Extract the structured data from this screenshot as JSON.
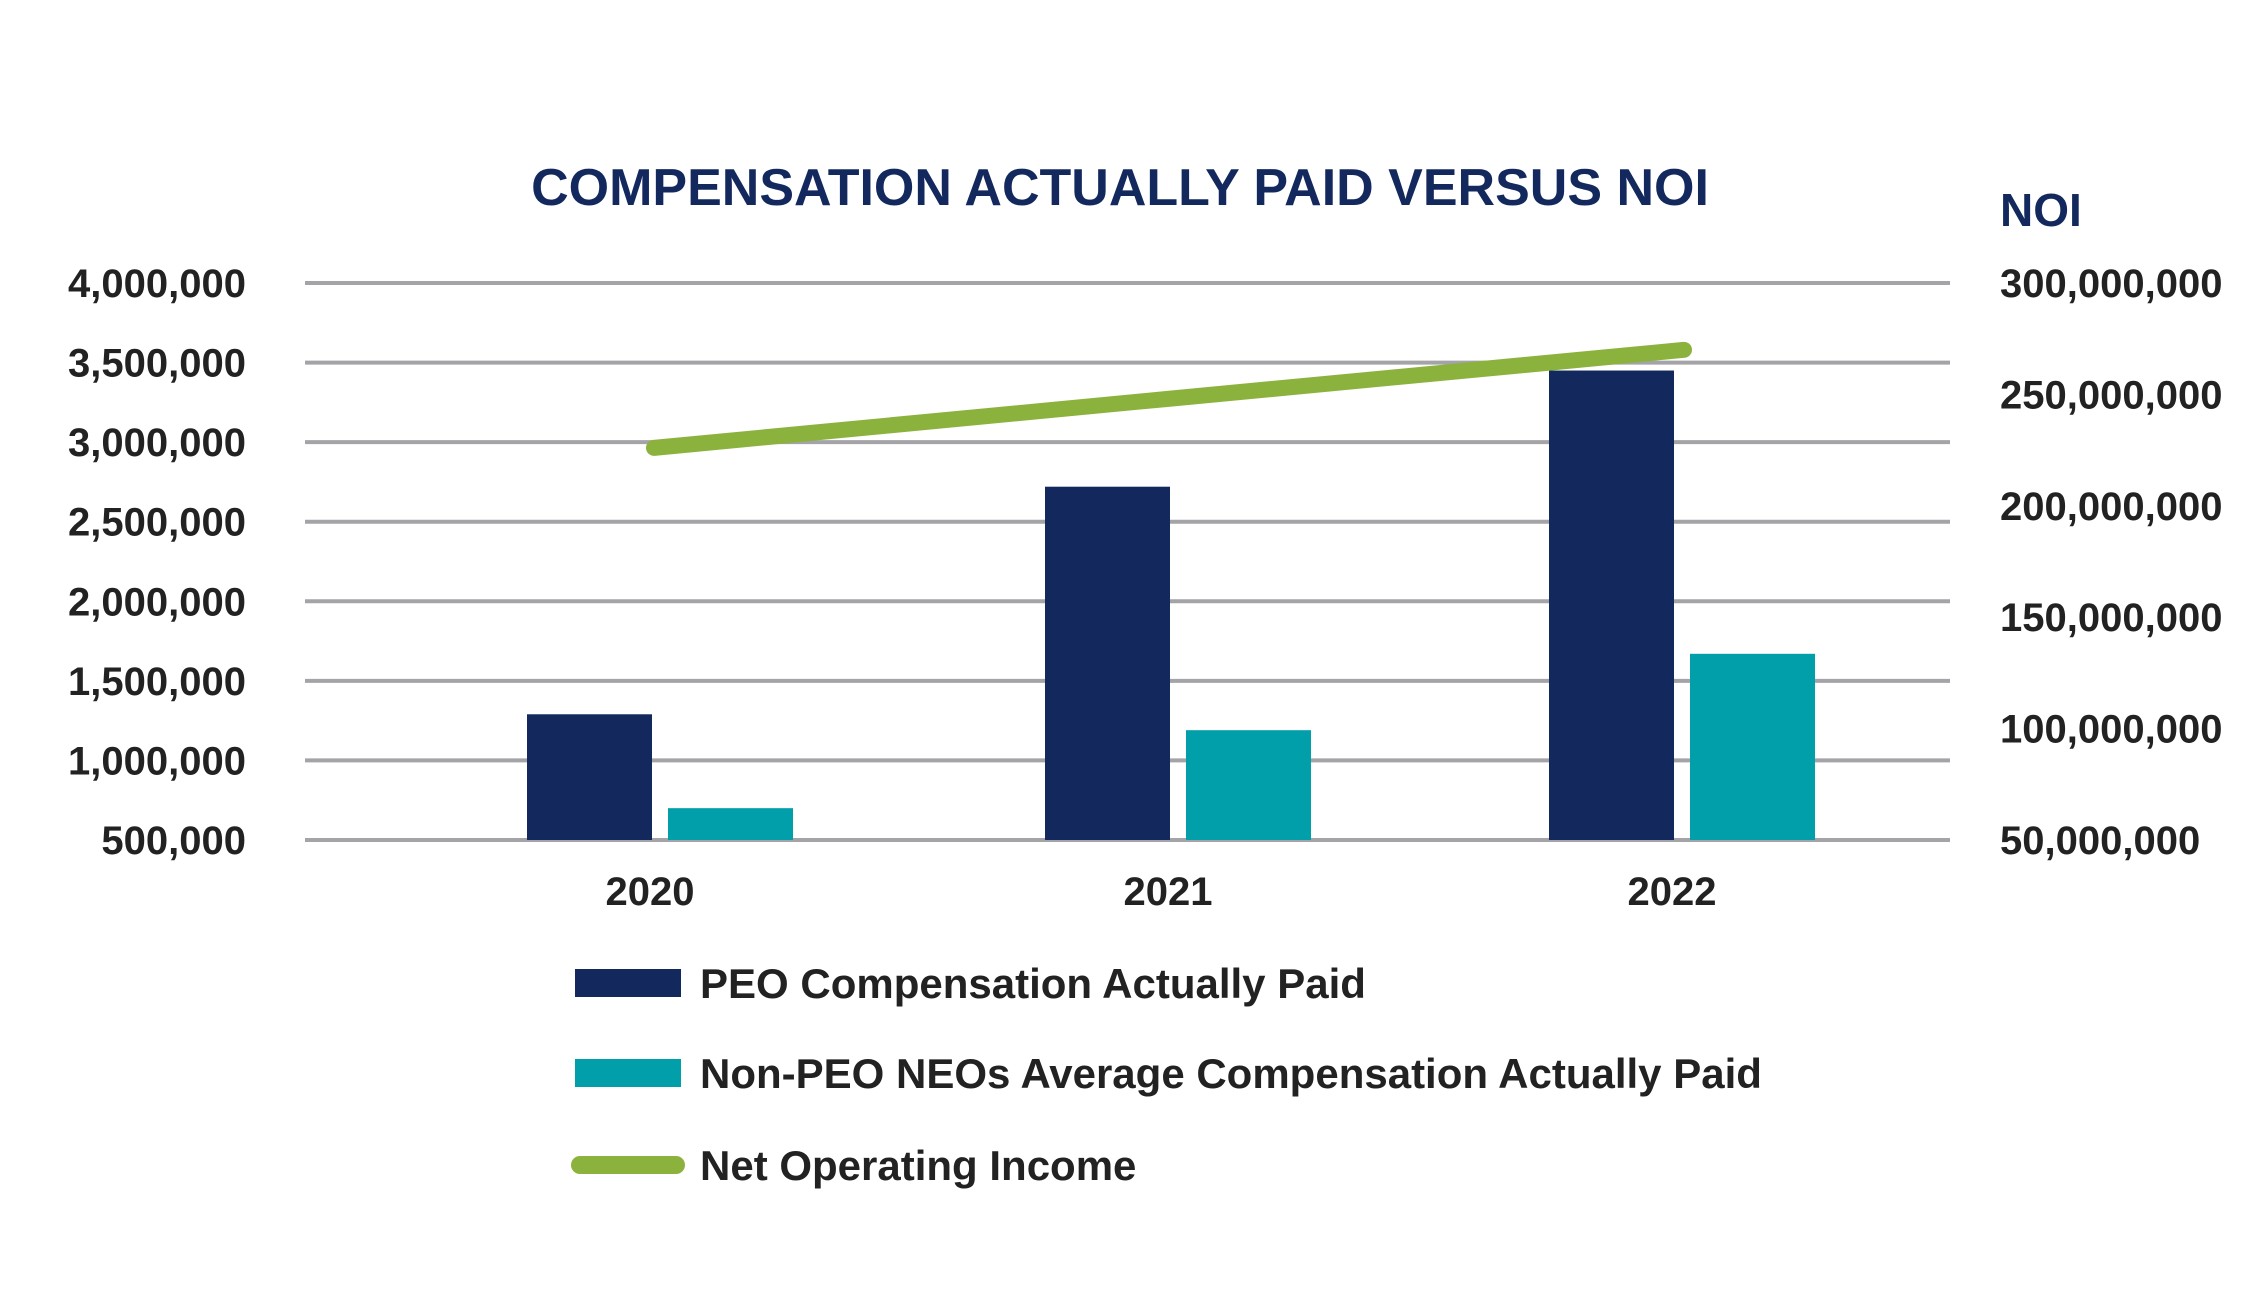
{
  "chart_data": {
    "type": "bar",
    "title": "COMPENSATION ACTUALLY PAID VERSUS NOI",
    "categories": [
      "2020",
      "2021",
      "2022"
    ],
    "y_left": {
      "ticks": [
        "4,000,000",
        "3,500,000",
        "3,000,000",
        "2,500,000",
        "2,000,000",
        "1,500,000",
        "1,000,000",
        "500,000"
      ],
      "range": [
        500000,
        4000000
      ]
    },
    "y_right": {
      "label": "NOI",
      "ticks": [
        "300,000,000",
        "250,000,000",
        "200,000,000",
        "150,000,000",
        "100,000,000",
        "50,000,000"
      ],
      "range": [
        50000000,
        300000000
      ]
    },
    "series": [
      {
        "name": "PEO Compensation Actually Paid",
        "type": "bar",
        "axis": "left",
        "color": "#13295e",
        "values": [
          1290000,
          2720000,
          3450000
        ]
      },
      {
        "name": "Non-PEO NEOs Average Compensation Actually Paid",
        "type": "bar",
        "axis": "left",
        "color": "#009fa9",
        "values": [
          700000,
          1190000,
          1670000
        ]
      },
      {
        "name": "Net Operating Income",
        "type": "line",
        "axis": "right",
        "color": "#8cb23e",
        "values": [
          226000000,
          248000000,
          270000000
        ]
      }
    ],
    "grid": true,
    "legend_position": "bottom"
  }
}
